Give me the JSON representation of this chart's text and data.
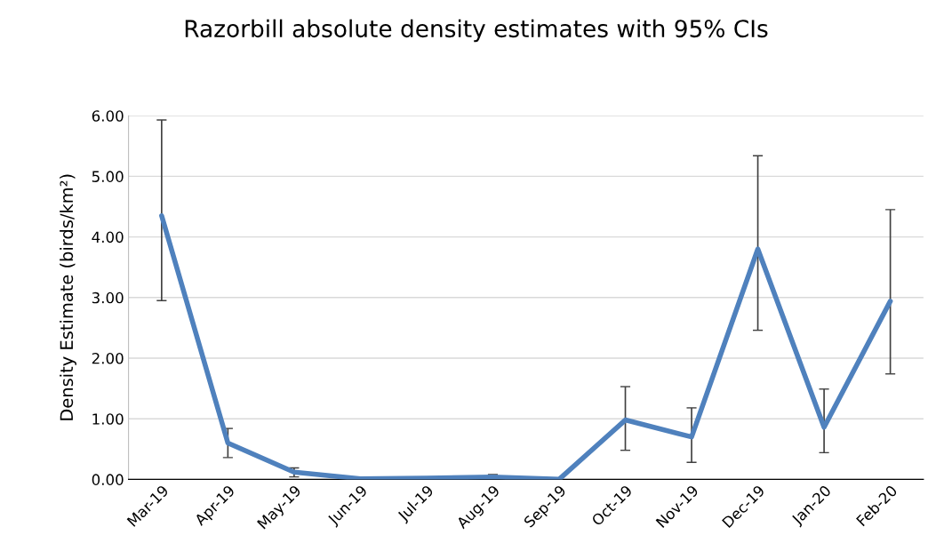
{
  "chart_data": {
    "type": "line",
    "title": "Razorbill absolute density estimates with 95% CIs",
    "ylabel": "Density Estimate (birds/km²)",
    "categories": [
      "Mar-19",
      "Apr-19",
      "May-19",
      "Jun-19",
      "Jul-19",
      "Aug-19",
      "Sep-19",
      "Oct-19",
      "Nov-19",
      "Dec-19",
      "Jan-20",
      "Feb-20"
    ],
    "series": [
      {
        "color": "#4f81bd",
        "values": [
          4.35,
          0.6,
          0.12,
          0.01,
          0.02,
          0.04,
          0.0,
          0.98,
          0.7,
          3.8,
          0.86,
          2.94
        ],
        "errors": [
          [
            2.95,
            5.93
          ],
          [
            0.36,
            0.84
          ],
          [
            0.04,
            0.19
          ],
          null,
          null,
          [
            0.01,
            0.08
          ],
          null,
          [
            0.48,
            1.53
          ],
          [
            0.28,
            1.18
          ],
          [
            2.46,
            5.34
          ],
          [
            0.44,
            1.49
          ],
          [
            1.74,
            4.45
          ]
        ]
      }
    ],
    "ylim": [
      0,
      6
    ],
    "yticks": [
      {
        "value": 0,
        "label": "0.00"
      },
      {
        "value": 1,
        "label": "1.00"
      },
      {
        "value": 2,
        "label": "2.00"
      },
      {
        "value": 3,
        "label": "3.00"
      },
      {
        "value": 4,
        "label": "4.00"
      },
      {
        "value": 5,
        "label": "5.00"
      },
      {
        "value": 6,
        "label": "6.00"
      }
    ],
    "grid": "y",
    "marker": "none",
    "line_style": "solid"
  }
}
